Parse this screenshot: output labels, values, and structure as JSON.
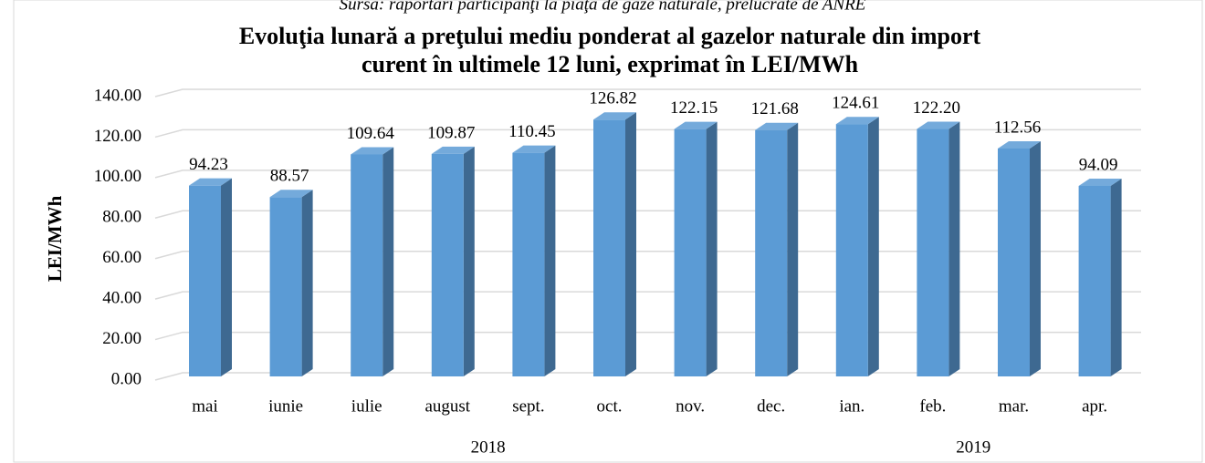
{
  "chart_data": {
    "type": "bar3d",
    "source": "Sursa: raportări participanţi la piaţa de gaze naturale, prelucrate de ANRE",
    "title": [
      "Evoluţia lunară a preţului mediu ponderat al gazelor naturale din import",
      "curent în ultimele 12 luni, exprimat în LEI/MWh"
    ],
    "y_label": "LEI/MWh",
    "categories": [
      "mai",
      "iunie",
      "iulie",
      "august",
      "sept.",
      "oct.",
      "nov.",
      "dec.",
      "ian.",
      "feb.",
      "mar.",
      "apr."
    ],
    "group_labels": [
      "2018",
      "2019"
    ],
    "values": [
      94.23,
      88.57,
      109.64,
      109.87,
      110.45,
      126.82,
      122.15,
      121.68,
      124.61,
      122.2,
      112.56,
      94.09
    ],
    "value_labels": [
      "94.23",
      "88.57",
      "109.64",
      "109.87",
      "110.45",
      "126.82",
      "122.15",
      "121.68",
      "124.61",
      "122.20",
      "112.56",
      "94.09"
    ],
    "color": "#5b9bd5",
    "ylim": [
      0,
      140
    ],
    "yticks": [
      {
        "value": 0,
        "label": "0.00"
      },
      {
        "value": 20,
        "label": "20.00"
      },
      {
        "value": 40,
        "label": "40.00"
      },
      {
        "value": 60,
        "label": "60.00"
      },
      {
        "value": 80,
        "label": "80.00"
      },
      {
        "value": 100,
        "label": "100.00"
      },
      {
        "value": 120,
        "label": "120.00"
      },
      {
        "value": 140,
        "label": "140.00"
      }
    ],
    "grid": true
  }
}
